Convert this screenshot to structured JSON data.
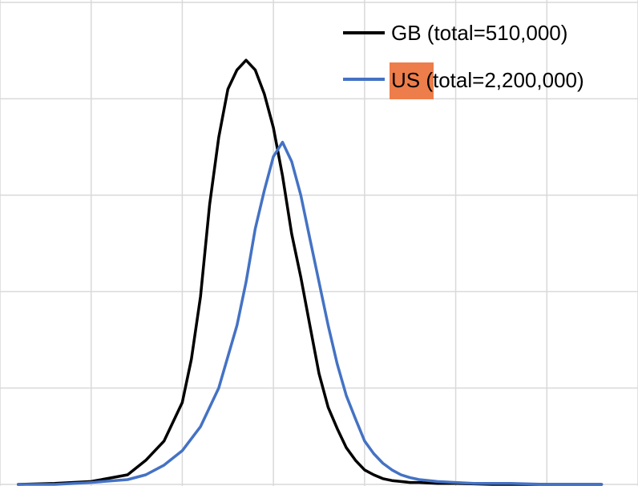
{
  "chart_data": {
    "type": "line",
    "title": "",
    "xlabel": "",
    "ylabel": "",
    "grid": true,
    "legend_position": "top-right",
    "xlim": [
      -3,
      4
    ],
    "ylim": [
      0,
      5
    ],
    "series": [
      {
        "name": "GB (total=510,000)",
        "color": "#000000",
        "x": [
          -2.8,
          -2.4,
          -2.0,
          -1.6,
          -1.4,
          -1.2,
          -1.0,
          -0.9,
          -0.8,
          -0.7,
          -0.6,
          -0.5,
          -0.4,
          -0.3,
          -0.2,
          -0.1,
          0.0,
          0.1,
          0.2,
          0.3,
          0.4,
          0.5,
          0.6,
          0.7,
          0.8,
          0.9,
          1.0,
          1.1,
          1.2,
          1.3,
          1.4,
          1.5,
          1.6,
          1.8,
          2.0,
          2.4,
          2.8,
          3.2,
          3.6
        ],
        "y": [
          0.0,
          0.01,
          0.03,
          0.1,
          0.25,
          0.45,
          0.85,
          1.3,
          1.95,
          2.9,
          3.6,
          4.1,
          4.3,
          4.4,
          4.3,
          4.05,
          3.7,
          3.2,
          2.6,
          2.15,
          1.65,
          1.15,
          0.8,
          0.58,
          0.38,
          0.25,
          0.15,
          0.1,
          0.06,
          0.04,
          0.03,
          0.02,
          0.02,
          0.01,
          0.01,
          0.0,
          0.0,
          0.0,
          0.0
        ]
      },
      {
        "name": "US (total=2,200,000)",
        "color": "#4472C4",
        "x": [
          -2.8,
          -2.4,
          -2.0,
          -1.6,
          -1.4,
          -1.2,
          -1.0,
          -0.8,
          -0.6,
          -0.4,
          -0.3,
          -0.2,
          -0.1,
          0.0,
          0.1,
          0.2,
          0.3,
          0.4,
          0.5,
          0.6,
          0.7,
          0.8,
          0.9,
          1.0,
          1.1,
          1.2,
          1.3,
          1.4,
          1.5,
          1.6,
          1.8,
          2.0,
          2.2,
          2.6,
          3.0,
          3.6
        ],
        "y": [
          0.0,
          0.0,
          0.02,
          0.05,
          0.1,
          0.2,
          0.35,
          0.6,
          1.0,
          1.65,
          2.1,
          2.65,
          3.05,
          3.4,
          3.55,
          3.35,
          3.0,
          2.55,
          2.1,
          1.65,
          1.25,
          0.92,
          0.68,
          0.45,
          0.32,
          0.22,
          0.15,
          0.1,
          0.07,
          0.05,
          0.03,
          0.02,
          0.01,
          0.01,
          0.0,
          0.0
        ]
      }
    ]
  }
}
